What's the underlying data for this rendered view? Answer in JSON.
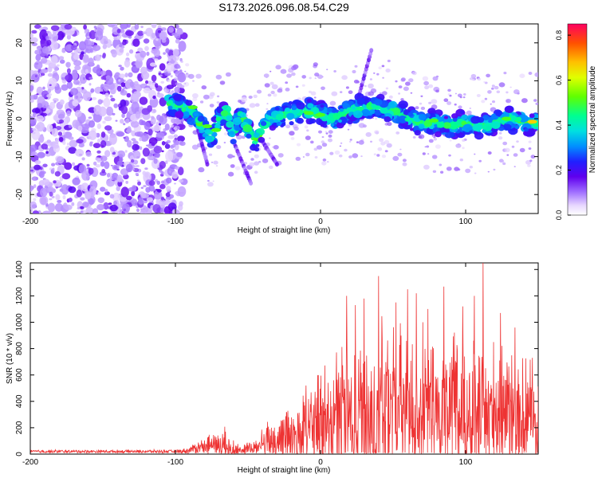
{
  "title": "S173.2026.096.08.54.C29",
  "chart_data": [
    {
      "type": "heatmap",
      "xlabel": "Height of straight line (km)",
      "ylabel": "Frequency (Hz)",
      "xlim": [
        -200,
        150
      ],
      "ylim": [
        -25,
        25
      ],
      "xticks": [
        -200,
        -100,
        0,
        100
      ],
      "yticks": [
        -20,
        -10,
        0,
        10,
        20
      ],
      "ridge": [
        {
          "x": -105,
          "y": 4
        },
        {
          "x": -95,
          "y": 3
        },
        {
          "x": -85,
          "y": 0
        },
        {
          "x": -80,
          "y": -3
        },
        {
          "x": -75,
          "y": -5
        },
        {
          "x": -70,
          "y": 0
        },
        {
          "x": -65,
          "y": 2
        },
        {
          "x": -60,
          "y": -4
        },
        {
          "x": -55,
          "y": 1
        },
        {
          "x": -50,
          "y": -3
        },
        {
          "x": -45,
          "y": -6
        },
        {
          "x": -35,
          "y": 0
        },
        {
          "x": -25,
          "y": 1
        },
        {
          "x": -15,
          "y": 2
        },
        {
          "x": -5,
          "y": 2
        },
        {
          "x": 0,
          "y": 1
        },
        {
          "x": 10,
          "y": 0
        },
        {
          "x": 20,
          "y": 2
        },
        {
          "x": 30,
          "y": 3
        },
        {
          "x": 40,
          "y": 3
        },
        {
          "x": 50,
          "y": 2
        },
        {
          "x": 60,
          "y": 0
        },
        {
          "x": 70,
          "y": -1
        },
        {
          "x": 80,
          "y": -1
        },
        {
          "x": 90,
          "y": -2
        },
        {
          "x": 100,
          "y": -1
        },
        {
          "x": 110,
          "y": -2
        },
        {
          "x": 120,
          "y": -1
        },
        {
          "x": 130,
          "y": 0
        },
        {
          "x": 140,
          "y": -1
        },
        {
          "x": 150,
          "y": -1
        }
      ],
      "colorbar": {
        "label": "Normalized spectral amplitude",
        "range": [
          0,
          0.85
        ],
        "ticks": [
          "0.0",
          "0.2",
          "0.4",
          "0.6",
          "0.8"
        ]
      }
    },
    {
      "type": "line",
      "xlabel": "Height of straight line (km)",
      "ylabel": "SNR (10 * v/v)",
      "xlim": [
        -200,
        150
      ],
      "ylim": [
        0,
        1450
      ],
      "xticks": [
        -200,
        -100,
        0,
        100
      ],
      "yticks": [
        0,
        200,
        400,
        600,
        800,
        1000,
        1200,
        1400
      ],
      "color": "#ee3333",
      "envelope": [
        {
          "x": -200,
          "base": 20,
          "amp": 15
        },
        {
          "x": -100,
          "base": 20,
          "amp": 15
        },
        {
          "x": -92,
          "base": 25,
          "amp": 25
        },
        {
          "x": -85,
          "base": 50,
          "amp": 60
        },
        {
          "x": -75,
          "base": 70,
          "amp": 110
        },
        {
          "x": -65,
          "base": 60,
          "amp": 160
        },
        {
          "x": -55,
          "base": 30,
          "amp": 30
        },
        {
          "x": -45,
          "base": 50,
          "amp": 90
        },
        {
          "x": -35,
          "base": 100,
          "amp": 200
        },
        {
          "x": -20,
          "base": 150,
          "amp": 350
        },
        {
          "x": -10,
          "base": 180,
          "amp": 420
        },
        {
          "x": 0,
          "base": 220,
          "amp": 500
        },
        {
          "x": 10,
          "base": 270,
          "amp": 560
        },
        {
          "x": 25,
          "base": 300,
          "amp": 700
        },
        {
          "x": 40,
          "base": 320,
          "amp": 800
        },
        {
          "x": 60,
          "base": 340,
          "amp": 720
        },
        {
          "x": 80,
          "base": 320,
          "amp": 650
        },
        {
          "x": 100,
          "base": 330,
          "amp": 700
        },
        {
          "x": 115,
          "base": 330,
          "amp": 640
        },
        {
          "x": 130,
          "base": 320,
          "amp": 520
        },
        {
          "x": 150,
          "base": 320,
          "amp": 480
        }
      ],
      "peaks": [
        {
          "x": 18,
          "y": 1200
        },
        {
          "x": 24,
          "y": 1130
        },
        {
          "x": 30,
          "y": 1180
        },
        {
          "x": 40,
          "y": 1350
        },
        {
          "x": 52,
          "y": 1150
        },
        {
          "x": 60,
          "y": 1250
        },
        {
          "x": 66,
          "y": 1220
        },
        {
          "x": 74,
          "y": 1100
        },
        {
          "x": 85,
          "y": 1270
        },
        {
          "x": 98,
          "y": 1120
        },
        {
          "x": 106,
          "y": 1200
        },
        {
          "x": 112,
          "y": 1450
        },
        {
          "x": 124,
          "y": 1070
        },
        {
          "x": 134,
          "y": 960
        },
        {
          "x": 146,
          "y": 730
        }
      ]
    }
  ]
}
